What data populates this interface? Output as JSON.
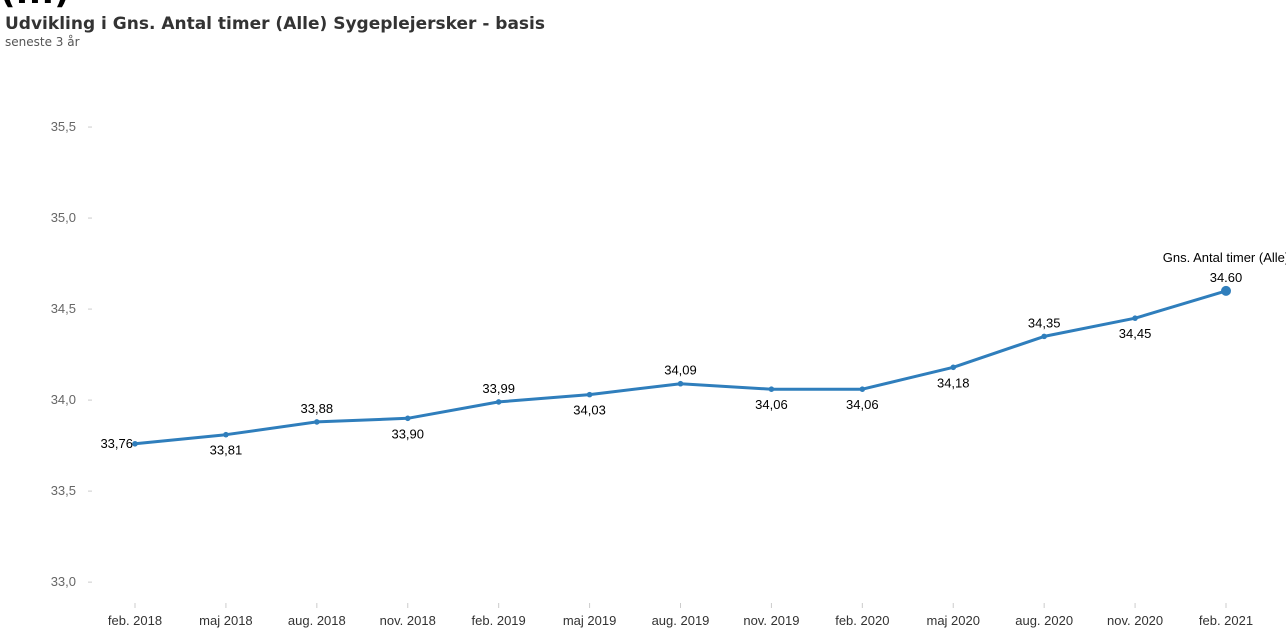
{
  "header": {
    "clipped_text": "(...)",
    "title": "Udvikling i Gns. Antal timer (Alle) Sygeplejersker - basis",
    "subtitle": "seneste 3 år"
  },
  "colors": {
    "line": "#2f7ebc",
    "text": "#333333",
    "axis_tick": "#cccccc"
  },
  "chart_data": {
    "type": "line",
    "title": "Udvikling i Gns. Antal timer (Alle) Sygeplejersker - basis",
    "subtitle": "seneste 3 år",
    "xlabel": "",
    "ylabel": "",
    "categories": [
      "feb. 2018",
      "maj 2018",
      "aug. 2018",
      "nov. 2018",
      "feb. 2019",
      "maj 2019",
      "aug. 2019",
      "nov. 2019",
      "feb. 2020",
      "maj 2020",
      "aug. 2020",
      "nov. 2020",
      "feb. 2021"
    ],
    "series": [
      {
        "name": "Gns. Antal timer (Alle)",
        "values": [
          33.76,
          33.81,
          33.88,
          33.9,
          33.99,
          34.03,
          34.09,
          34.06,
          34.06,
          34.18,
          34.35,
          34.45,
          34.6
        ]
      }
    ],
    "data_labels": [
      "33,76",
      "33,81",
      "33,88",
      "33,90",
      "33,99",
      "34,03",
      "34,09",
      "34,06",
      "34,06",
      "34,18",
      "34,35",
      "34,45",
      "34.60"
    ],
    "label_position": [
      "left",
      "below",
      "above",
      "below",
      "above",
      "below",
      "above",
      "below",
      "below",
      "below",
      "above",
      "below",
      "above"
    ],
    "end_label": "Gns. Antal timer (Alle)",
    "yticks": [
      33.0,
      33.5,
      34.0,
      34.5,
      35.0,
      35.5
    ],
    "ytick_labels": [
      "33,0",
      "33,5",
      "34,0",
      "34,5",
      "35,0",
      "35,5"
    ],
    "ylim": [
      32.77,
      35.72
    ],
    "grid": false,
    "legend": "none"
  }
}
